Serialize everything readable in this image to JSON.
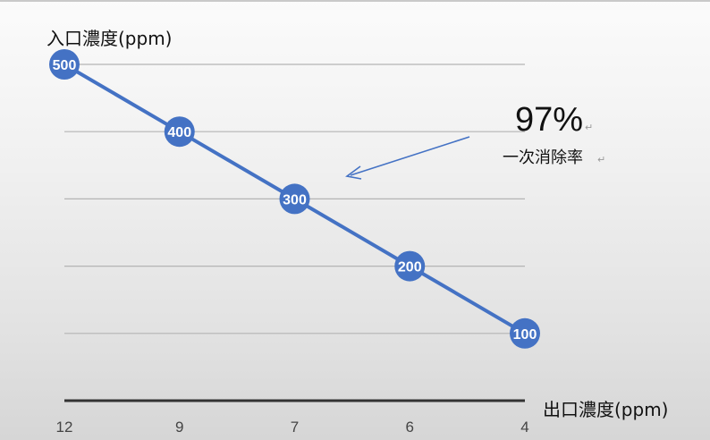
{
  "chart_data": {
    "type": "line",
    "ylabel": "入口濃度(ppm)",
    "xlabel": "出口濃度(ppm)",
    "categories": [
      "12",
      "9",
      "7",
      "6",
      "4"
    ],
    "series": [
      {
        "values": [
          500,
          400,
          300,
          200,
          100
        ]
      }
    ],
    "ylim": [
      0,
      500
    ],
    "grid": true,
    "legend": "none",
    "annotations": [
      {
        "value": "97%",
        "subtitle": "一次消除率"
      }
    ],
    "colors": {
      "line": "#4472c4",
      "grid": "#b4b4b4",
      "axis": "#333333"
    }
  }
}
